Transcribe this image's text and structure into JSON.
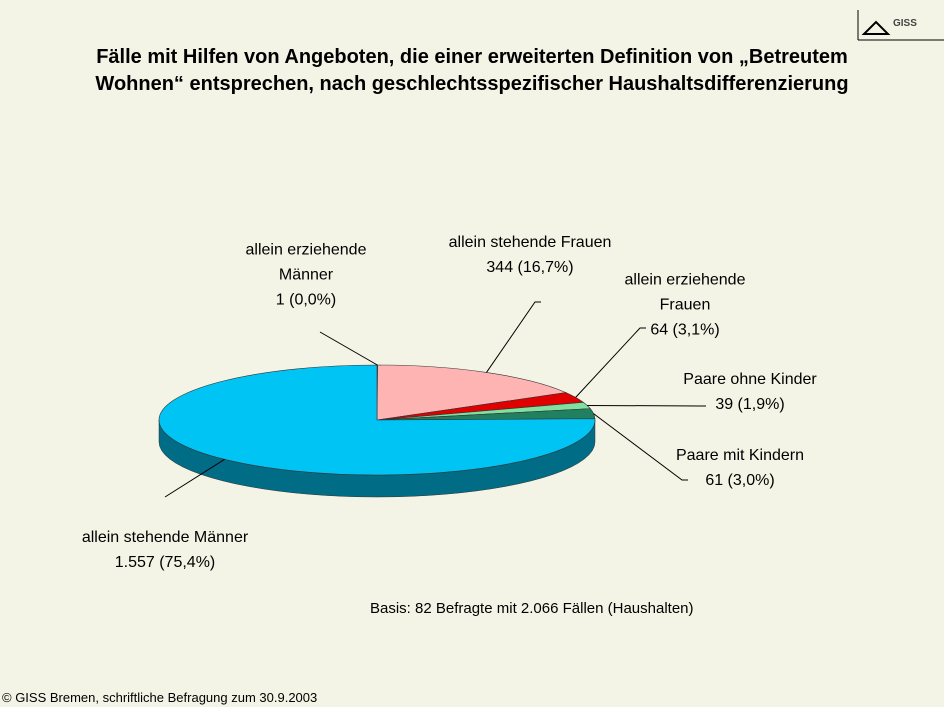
{
  "chart_data": {
    "type": "pie",
    "title": "Fälle mit Hilfen von Angeboten, die einer erweiterten Definition von „Betreutem Wohnen“ entsprechen, nach geschlechtsspezifischer Haushaltsdifferenzierung",
    "categories": [
      "allein erziehende Männer",
      "allein stehende Frauen",
      "allein erziehende Frauen",
      "Paare ohne Kinder",
      "Paare mit Kindern",
      "allein stehende Männer"
    ],
    "values": [
      1,
      344,
      64,
      39,
      61,
      1557
    ],
    "value_labels": [
      "1 (0,0%)",
      "344 (16,7%)",
      "64 (3,1%)",
      "39 (1,9%)",
      "61 (3,0%)",
      "1.557 (75,4%)"
    ],
    "colors": [
      "#ffd0d0",
      "#ffb4b4",
      "#e00000",
      "#80e0a0",
      "#208060",
      "#00c4f4"
    ],
    "note": "Basis: 82 Befragte mit 2.066 Fällen (Haushalten)"
  },
  "footer": "© GISS Bremen, schriftliche Befragung zum 30.9.2003",
  "logo": "GISS"
}
